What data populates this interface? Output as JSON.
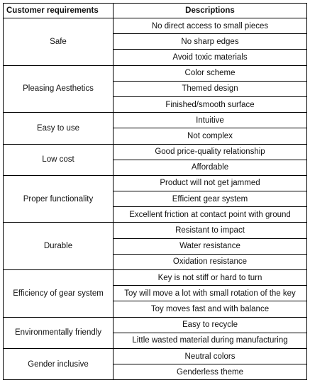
{
  "headers": {
    "requirement": "Customer requirements",
    "description": "Descriptions"
  },
  "groups": [
    {
      "requirement": "Safe",
      "descriptions": [
        "No direct access to small pieces",
        "No sharp edges",
        "Avoid toxic materials"
      ]
    },
    {
      "requirement": "Pleasing Aesthetics",
      "descriptions": [
        "Color scheme",
        "Themed design",
        "Finished/smooth surface"
      ]
    },
    {
      "requirement": "Easy to use",
      "descriptions": [
        "Intuitive",
        "Not complex"
      ]
    },
    {
      "requirement": "Low cost",
      "descriptions": [
        "Good price-quality relationship",
        "Affordable"
      ]
    },
    {
      "requirement": "Proper functionality",
      "descriptions": [
        "Product will not get jammed",
        "Efficient gear system",
        "Excellent friction at contact point with ground"
      ]
    },
    {
      "requirement": "Durable",
      "descriptions": [
        "Resistant to impact",
        "Water resistance",
        "Oxidation resistance"
      ]
    },
    {
      "requirement": "Efficiency of gear system",
      "descriptions": [
        "Key is not stiff or hard to turn",
        "Toy will move a lot with small rotation of the key",
        "Toy moves fast and with balance"
      ]
    },
    {
      "requirement": "Environmentally friendly",
      "descriptions": [
        "Easy to recycle",
        "Little wasted material during manufacturing"
      ]
    },
    {
      "requirement": "Gender inclusive",
      "descriptions": [
        "Neutral colors",
        "Genderless theme"
      ]
    }
  ]
}
